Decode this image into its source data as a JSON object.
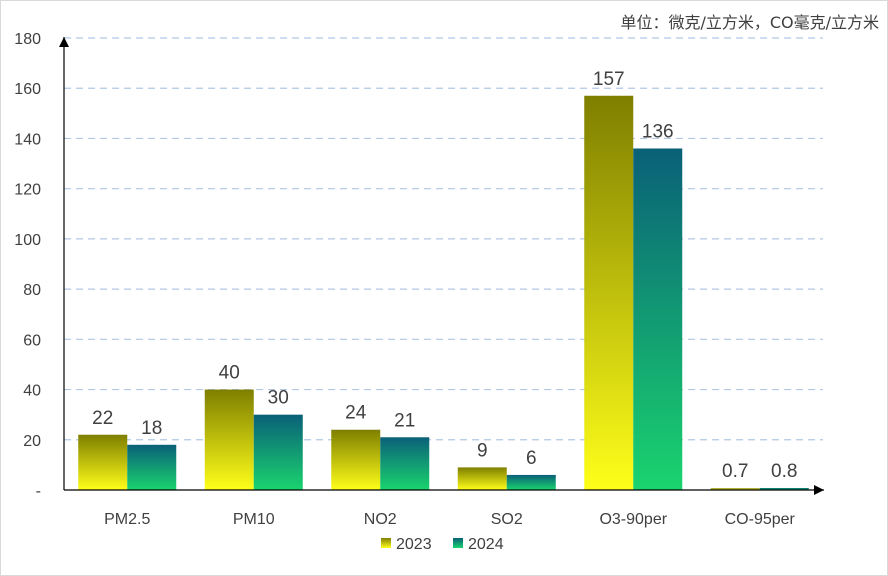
{
  "unit_note": "单位：微克/立方米，CO毫克/立方米",
  "chart_data": {
    "type": "bar",
    "categories": [
      "PM2.5",
      "PM10",
      "NO2",
      "SO2",
      "O3-90per",
      "CO-95per"
    ],
    "series": [
      {
        "name": "2023",
        "values": [
          22,
          40,
          24,
          9,
          157,
          0.7
        ],
        "labels": [
          "22",
          "40",
          "24",
          "9",
          "157",
          "0.7"
        ],
        "color_top": "#7f7f00",
        "color_bottom": "#ffff1a"
      },
      {
        "name": "2024",
        "values": [
          18,
          30,
          21,
          6,
          136,
          0.8
        ],
        "labels": [
          "18",
          "30",
          "21",
          "6",
          "136",
          "0.8"
        ],
        "color_top": "#0a6078",
        "color_bottom": "#1ad46e"
      }
    ],
    "yticks": [
      "-",
      "20",
      "40",
      "60",
      "80",
      "100",
      "120",
      "140",
      "160",
      "180"
    ],
    "ylim": [
      0,
      180
    ],
    "grid": true,
    "legend": "bottom"
  }
}
